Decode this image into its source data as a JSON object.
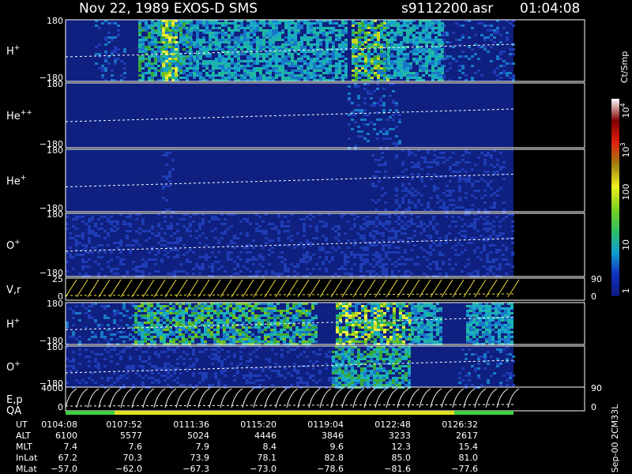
{
  "header": {
    "title": "Nov 22, 1989   EXOS-D SMS",
    "file": "s9112200.asr",
    "time": "01:04:08"
  },
  "panels": [
    {
      "label": "H",
      "sup": "+",
      "ticks": [
        "180",
        "−180"
      ]
    },
    {
      "label": "He",
      "sup": "++",
      "ticks": [
        "180",
        "−180"
      ]
    },
    {
      "label": "He",
      "sup": "+",
      "ticks": [
        "180",
        "−180"
      ]
    },
    {
      "label": "O",
      "sup": "+",
      "ticks": [
        "180",
        "−180"
      ]
    },
    {
      "label": "V,r",
      "ticks": [
        "25",
        "0"
      ],
      "right_ticks": [
        "90",
        "0"
      ]
    },
    {
      "label": "H",
      "sup": "+",
      "ticks": [
        "180",
        "−180"
      ]
    },
    {
      "label": "O",
      "sup": "+",
      "ticks": [
        "180",
        "−180"
      ]
    },
    {
      "label": "E,p",
      "ticks": [
        "4000",
        "0"
      ],
      "right_ticks": [
        "90",
        "0"
      ]
    }
  ],
  "qa_label": "QA",
  "colorbar": {
    "unit": "Ct/Smp",
    "ticks": [
      {
        "label": "10",
        "sup": "4"
      },
      {
        "label": "10",
        "sup": "3"
      },
      {
        "label": "100"
      },
      {
        "label": "10"
      },
      {
        "label": "1"
      }
    ]
  },
  "table": {
    "rows": [
      [
        "UT",
        "0104:08",
        "0107:52",
        "0111:36",
        "0115:20",
        "0119:04",
        "0122:48",
        "0126:32"
      ],
      [
        "ALT",
        "6100",
        "5577",
        "5024",
        "4446",
        "3846",
        "3233",
        "2617"
      ],
      [
        "MLT",
        "7.4",
        "7.6",
        "7.9",
        "8.4",
        "9.6",
        "12.3",
        "15.4"
      ],
      [
        "InLat",
        "67.2",
        "70.3",
        "73.9",
        "78.1",
        "82.8",
        "85.0",
        "81.0"
      ],
      [
        "MLat",
        "−57.0",
        "−62.0",
        "−67.3",
        "−73.0",
        "−78.6",
        "−81.6",
        "−77.6"
      ]
    ]
  },
  "footer": "Sep-00 2CM33L"
}
